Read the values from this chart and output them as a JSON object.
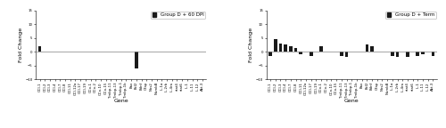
{
  "left_title": "Group D + 60 DPI",
  "right_title": "Group D + Term",
  "xlabel": "Gene",
  "ylabel": "Fold Change",
  "ylim": [
    -10,
    15
  ],
  "yticks": [
    -10,
    -5,
    0,
    5,
    10,
    15
  ],
  "genes": [
    "CCl-1",
    "CCl-2",
    "CCl-3",
    "CCl-4",
    "CCl-7",
    "CCl-8",
    "CCl-11",
    "CCl-12a",
    "CCl-17",
    "CCl-19",
    "CCo-1",
    "CCo-2",
    "CCo-10",
    "CCo-15",
    "Tmbp-11",
    "Tmbp-13",
    "Tmbp-1",
    "Tmbp-1b",
    "Bax",
    "Bcl2",
    "Bdnf",
    "Gfap",
    "Nos2",
    "NumbB",
    "IL-1a",
    "IL-2rb",
    "IL-4ra",
    "stat4",
    "stat6",
    "IL-1",
    "IL-11",
    "IL-12",
    "Akt-3"
  ],
  "left_values": [
    2.0,
    0.0,
    0.0,
    0.0,
    0.0,
    0.0,
    0.0,
    0.0,
    0.0,
    0.0,
    0.0,
    0.0,
    0.0,
    0.0,
    0.0,
    0.0,
    0.0,
    0.0,
    0.0,
    -6.0,
    0.0,
    0.0,
    0.0,
    0.0,
    0.0,
    0.0,
    0.0,
    0.0,
    0.0,
    0.0,
    0.0,
    0.0,
    0.0
  ],
  "right_values": [
    -1.5,
    4.5,
    3.0,
    2.5,
    2.0,
    1.5,
    -1.0,
    0.0,
    -1.5,
    0.0,
    2.0,
    0.0,
    0.0,
    0.0,
    -1.5,
    -2.0,
    0.0,
    0.0,
    0.0,
    2.5,
    2.0,
    0.0,
    0.0,
    0.0,
    -1.5,
    -2.0,
    0.0,
    -2.0,
    0.0,
    -1.5,
    -1.0,
    0.0,
    -1.5
  ],
  "bar_color": "#1a1a1a",
  "background_color": "#ffffff",
  "bar_width": 0.65,
  "legend_fontsize": 4.0,
  "axis_label_fontsize": 4.5,
  "tick_fontsize": 2.8,
  "ylabel_fontsize": 4.5
}
